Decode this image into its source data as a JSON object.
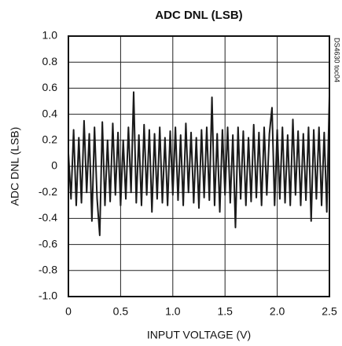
{
  "chart_data": {
    "type": "line",
    "title": "ADC DNL (LSB)",
    "xlabel": "INPUT VOLTAGE (V)",
    "ylabel": "ADC DNL (LSB)",
    "annotation": "DS4630 toc04",
    "color": "#1a1a1a",
    "grid": true,
    "xlim": [
      0,
      2.5
    ],
    "ylim": [
      -1,
      1
    ],
    "xticks": [
      0,
      0.5,
      {
        "value": 1,
        "label": "1.0"
      },
      1.5,
      {
        "value": 2,
        "label": "2.0"
      },
      2.5
    ],
    "yticks": [
      {
        "value": 1,
        "label": "1.0"
      },
      0.8,
      0.6,
      0.4,
      0.2,
      0,
      -0.2,
      -0.4,
      -0.6,
      -0.8,
      {
        "value": -1,
        "label": "-1.0"
      }
    ],
    "x": [
      0,
      0.025,
      0.05,
      0.075,
      0.1,
      0.125,
      0.15,
      0.175,
      0.2,
      0.225,
      0.25,
      0.275,
      0.3,
      0.325,
      0.35,
      0.375,
      0.4,
      0.425,
      0.45,
      0.475,
      0.5,
      0.525,
      0.55,
      0.575,
      0.6,
      0.625,
      0.65,
      0.675,
      0.7,
      0.725,
      0.75,
      0.775,
      0.8,
      0.825,
      0.85,
      0.875,
      0.9,
      0.925,
      0.95,
      0.975,
      1.0,
      1.025,
      1.05,
      1.075,
      1.1,
      1.125,
      1.15,
      1.175,
      1.2,
      1.225,
      1.25,
      1.275,
      1.3,
      1.325,
      1.35,
      1.375,
      1.4,
      1.425,
      1.45,
      1.475,
      1.5,
      1.525,
      1.55,
      1.575,
      1.6,
      1.625,
      1.65,
      1.675,
      1.7,
      1.725,
      1.75,
      1.775,
      1.8,
      1.825,
      1.85,
      1.875,
      1.9,
      1.925,
      1.95,
      1.975,
      2.0,
      2.025,
      2.05,
      2.075,
      2.1,
      2.125,
      2.15,
      2.175,
      2.2,
      2.225,
      2.25,
      2.275,
      2.3,
      2.325,
      2.35,
      2.375,
      2.4,
      2.425,
      2.45,
      2.475,
      2.5
    ],
    "values": [
      0.1,
      -0.25,
      0.28,
      -0.3,
      0.22,
      -0.28,
      0.35,
      -0.2,
      0.25,
      -0.42,
      0.3,
      -0.25,
      -0.53,
      0.34,
      -0.3,
      0.2,
      -0.27,
      0.33,
      -0.22,
      0.26,
      -0.3,
      0.2,
      -0.25,
      0.3,
      -0.2,
      0.57,
      -0.28,
      0.24,
      -0.3,
      0.32,
      -0.22,
      0.28,
      -0.35,
      0.25,
      -0.25,
      0.3,
      -0.28,
      0.22,
      -0.3,
      0.27,
      -0.22,
      0.3,
      -0.26,
      0.24,
      -0.3,
      0.33,
      -0.2,
      0.26,
      -0.28,
      0.22,
      -0.32,
      0.28,
      -0.24,
      0.3,
      -0.26,
      0.53,
      -0.3,
      0.25,
      -0.35,
      0.28,
      -0.22,
      0.3,
      -0.28,
      0.24,
      -0.47,
      0.3,
      -0.25,
      0.27,
      -0.3,
      0.22,
      -0.27,
      0.32,
      -0.24,
      0.26,
      -0.3,
      0.3,
      -0.22,
      0.25,
      0.45,
      -0.3,
      0.28,
      -0.25,
      0.3,
      -0.28,
      0.24,
      -0.3,
      0.36,
      -0.22,
      0.27,
      -0.3,
      0.25,
      -0.26,
      0.3,
      -0.42,
      0.28,
      -0.25,
      0.3,
      -0.3,
      0.26,
      -0.35,
      0.54
    ]
  }
}
